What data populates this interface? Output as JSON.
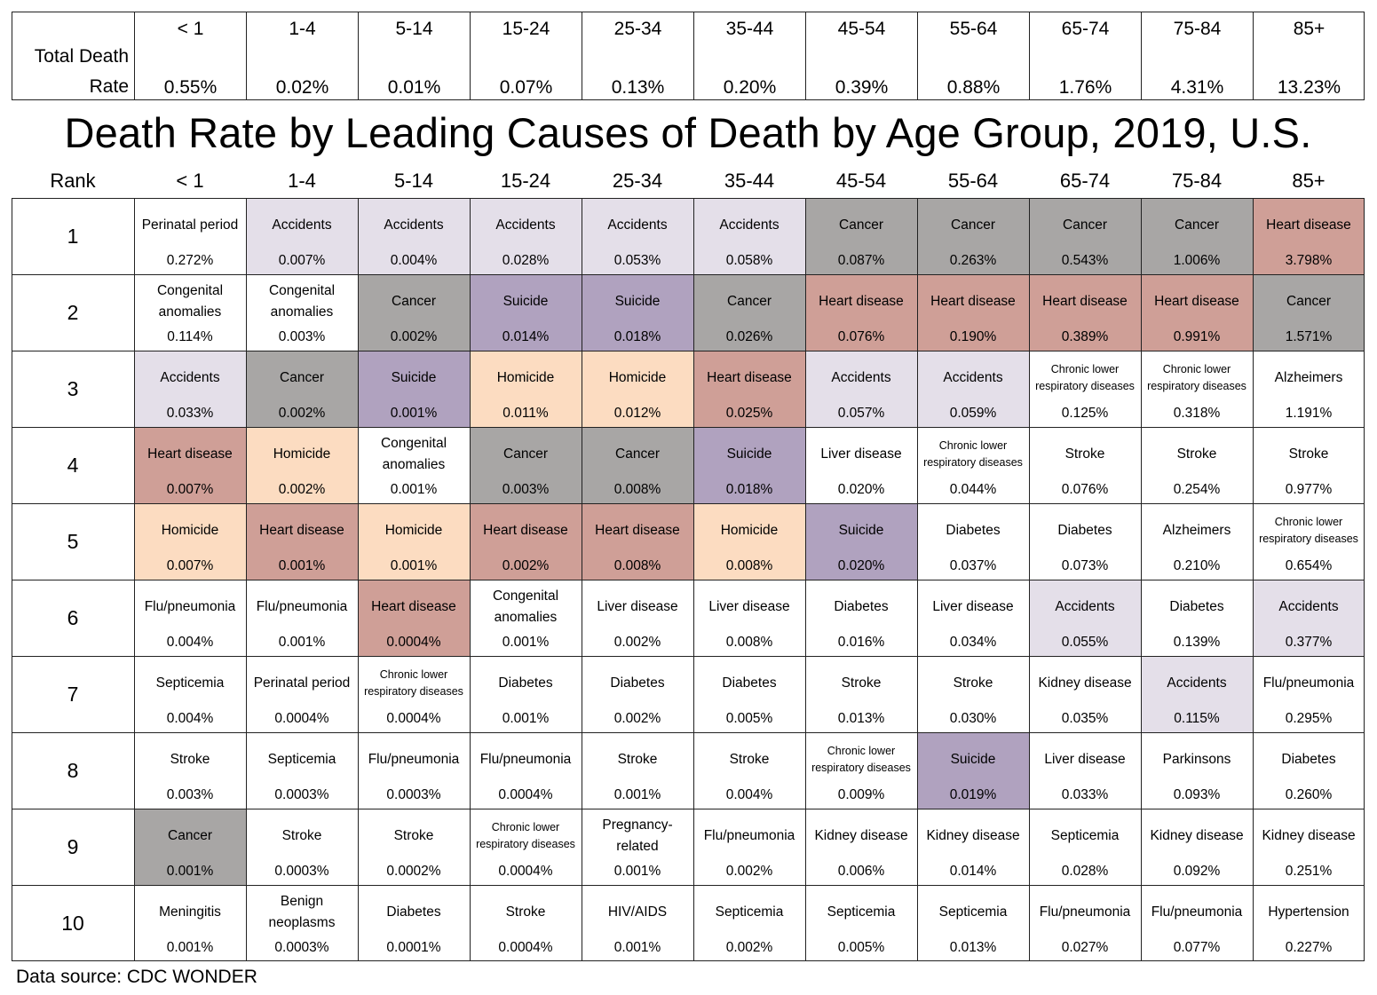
{
  "title": "Death Rate by Leading Causes of Death by Age Group, 2019, U.S.",
  "source": "Data source: CDC WONDER",
  "total_death_rate": {
    "label_line1": "Total Death",
    "label_line2": "Rate",
    "age_groups": [
      "< 1",
      "1-4",
      "5-14",
      "15-24",
      "25-34",
      "35-44",
      "45-54",
      "55-64",
      "65-74",
      "75-84",
      "85+"
    ],
    "rates": [
      "0.55%",
      "0.02%",
      "0.01%",
      "0.07%",
      "0.13%",
      "0.20%",
      "0.39%",
      "0.88%",
      "1.76%",
      "4.31%",
      "13.23%"
    ]
  },
  "colors": {
    "Accidents": "#e4dfe9",
    "Cancer": "#a8a6a5",
    "Heart disease": "#cf9f97",
    "Suicide": "#b0a2bf",
    "Homicide": "#fcdcc1",
    "default": "#ffffff",
    "border": "#222222"
  },
  "chart_data": {
    "type": "table",
    "title": "Death Rate by Leading Causes of Death by Age Group, 2019, U.S.",
    "rank_label": "Rank",
    "columns": [
      "< 1",
      "1-4",
      "5-14",
      "15-24",
      "25-34",
      "35-44",
      "45-54",
      "55-64",
      "65-74",
      "75-84",
      "85+"
    ],
    "rows": [
      {
        "rank": "1",
        "cells": [
          {
            "cause": "Perinatal period",
            "value": "0.272%"
          },
          {
            "cause": "Accidents",
            "value": "0.007%"
          },
          {
            "cause": "Accidents",
            "value": "0.004%"
          },
          {
            "cause": "Accidents",
            "value": "0.028%"
          },
          {
            "cause": "Accidents",
            "value": "0.053%"
          },
          {
            "cause": "Accidents",
            "value": "0.058%"
          },
          {
            "cause": "Cancer",
            "value": "0.087%"
          },
          {
            "cause": "Cancer",
            "value": "0.263%"
          },
          {
            "cause": "Cancer",
            "value": "0.543%"
          },
          {
            "cause": "Cancer",
            "value": "1.006%"
          },
          {
            "cause": "Heart disease",
            "value": "3.798%"
          }
        ]
      },
      {
        "rank": "2",
        "cells": [
          {
            "cause": "Congenital\nanomalies",
            "value": "0.114%"
          },
          {
            "cause": "Congenital\nanomalies",
            "value": "0.003%"
          },
          {
            "cause": "Cancer",
            "value": "0.002%"
          },
          {
            "cause": "Suicide",
            "value": "0.014%"
          },
          {
            "cause": "Suicide",
            "value": "0.018%"
          },
          {
            "cause": "Cancer",
            "value": "0.026%"
          },
          {
            "cause": "Heart disease",
            "value": "0.076%"
          },
          {
            "cause": "Heart disease",
            "value": "0.190%"
          },
          {
            "cause": "Heart disease",
            "value": "0.389%"
          },
          {
            "cause": "Heart disease",
            "value": "0.991%"
          },
          {
            "cause": "Cancer",
            "value": "1.571%"
          }
        ]
      },
      {
        "rank": "3",
        "cells": [
          {
            "cause": "Accidents",
            "value": "0.033%"
          },
          {
            "cause": "Cancer",
            "value": "0.002%"
          },
          {
            "cause": "Suicide",
            "value": "0.001%"
          },
          {
            "cause": "Homicide",
            "value": "0.011%"
          },
          {
            "cause": "Homicide",
            "value": "0.012%"
          },
          {
            "cause": "Heart disease",
            "value": "0.025%"
          },
          {
            "cause": "Accidents",
            "value": "0.057%"
          },
          {
            "cause": "Accidents",
            "value": "0.059%"
          },
          {
            "cause": "Chronic lower\nrespiratory diseases",
            "value": "0.125%"
          },
          {
            "cause": "Chronic lower\nrespiratory diseases",
            "value": "0.318%"
          },
          {
            "cause": "Alzheimers",
            "value": "1.191%"
          }
        ]
      },
      {
        "rank": "4",
        "cells": [
          {
            "cause": "Heart disease",
            "value": "0.007%"
          },
          {
            "cause": "Homicide",
            "value": "0.002%"
          },
          {
            "cause": "Congenital\nanomalies",
            "value": "0.001%"
          },
          {
            "cause": "Cancer",
            "value": "0.003%"
          },
          {
            "cause": "Cancer",
            "value": "0.008%"
          },
          {
            "cause": "Suicide",
            "value": "0.018%"
          },
          {
            "cause": "Liver disease",
            "value": "0.020%"
          },
          {
            "cause": "Chronic lower\nrespiratory diseases",
            "value": "0.044%"
          },
          {
            "cause": "Stroke",
            "value": "0.076%"
          },
          {
            "cause": "Stroke",
            "value": "0.254%"
          },
          {
            "cause": "Stroke",
            "value": "0.977%"
          }
        ]
      },
      {
        "rank": "5",
        "cells": [
          {
            "cause": "Homicide",
            "value": "0.007%"
          },
          {
            "cause": "Heart disease",
            "value": "0.001%"
          },
          {
            "cause": "Homicide",
            "value": "0.001%"
          },
          {
            "cause": "Heart disease",
            "value": "0.002%"
          },
          {
            "cause": "Heart disease",
            "value": "0.008%"
          },
          {
            "cause": "Homicide",
            "value": "0.008%"
          },
          {
            "cause": "Suicide",
            "value": "0.020%"
          },
          {
            "cause": "Diabetes",
            "value": "0.037%"
          },
          {
            "cause": "Diabetes",
            "value": "0.073%"
          },
          {
            "cause": "Alzheimers",
            "value": "0.210%"
          },
          {
            "cause": "Chronic lower\nrespiratory diseases",
            "value": "0.654%"
          }
        ]
      },
      {
        "rank": "6",
        "cells": [
          {
            "cause": "Flu/pneumonia",
            "value": "0.004%"
          },
          {
            "cause": "Flu/pneumonia",
            "value": "0.001%"
          },
          {
            "cause": "Heart disease",
            "value": "0.0004%"
          },
          {
            "cause": "Congenital\nanomalies",
            "value": "0.001%"
          },
          {
            "cause": "Liver disease",
            "value": "0.002%"
          },
          {
            "cause": "Liver disease",
            "value": "0.008%"
          },
          {
            "cause": "Diabetes",
            "value": "0.016%"
          },
          {
            "cause": "Liver disease",
            "value": "0.034%"
          },
          {
            "cause": "Accidents",
            "value": "0.055%"
          },
          {
            "cause": "Diabetes",
            "value": "0.139%"
          },
          {
            "cause": "Accidents",
            "value": "0.377%"
          }
        ]
      },
      {
        "rank": "7",
        "cells": [
          {
            "cause": "Septicemia",
            "value": "0.004%"
          },
          {
            "cause": "Perinatal period",
            "value": "0.0004%"
          },
          {
            "cause": "Chronic lower\nrespiratory diseases",
            "value": "0.0004%"
          },
          {
            "cause": "Diabetes",
            "value": "0.001%"
          },
          {
            "cause": "Diabetes",
            "value": "0.002%"
          },
          {
            "cause": "Diabetes",
            "value": "0.005%"
          },
          {
            "cause": "Stroke",
            "value": "0.013%"
          },
          {
            "cause": "Stroke",
            "value": "0.030%"
          },
          {
            "cause": "Kidney disease",
            "value": "0.035%"
          },
          {
            "cause": "Accidents",
            "value": "0.115%"
          },
          {
            "cause": "Flu/pneumonia",
            "value": "0.295%"
          }
        ]
      },
      {
        "rank": "8",
        "cells": [
          {
            "cause": "Stroke",
            "value": "0.003%"
          },
          {
            "cause": "Septicemia",
            "value": "0.0003%"
          },
          {
            "cause": "Flu/pneumonia",
            "value": "0.0003%"
          },
          {
            "cause": "Flu/pneumonia",
            "value": "0.0004%"
          },
          {
            "cause": "Stroke",
            "value": "0.001%"
          },
          {
            "cause": "Stroke",
            "value": "0.004%"
          },
          {
            "cause": "Chronic lower\nrespiratory diseases",
            "value": "0.009%"
          },
          {
            "cause": "Suicide",
            "value": "0.019%"
          },
          {
            "cause": "Liver disease",
            "value": "0.033%"
          },
          {
            "cause": "Parkinsons",
            "value": "0.093%"
          },
          {
            "cause": "Diabetes",
            "value": "0.260%"
          }
        ]
      },
      {
        "rank": "9",
        "cells": [
          {
            "cause": "Cancer",
            "value": "0.001%"
          },
          {
            "cause": "Stroke",
            "value": "0.0003%"
          },
          {
            "cause": "Stroke",
            "value": "0.0002%"
          },
          {
            "cause": "Chronic lower\nrespiratory diseases",
            "value": "0.0004%"
          },
          {
            "cause": "Pregnancy-\nrelated",
            "value": "0.001%"
          },
          {
            "cause": "Flu/pneumonia",
            "value": "0.002%"
          },
          {
            "cause": "Kidney disease",
            "value": "0.006%"
          },
          {
            "cause": "Kidney disease",
            "value": "0.014%"
          },
          {
            "cause": "Septicemia",
            "value": "0.028%"
          },
          {
            "cause": "Kidney disease",
            "value": "0.092%"
          },
          {
            "cause": "Kidney disease",
            "value": "0.251%"
          }
        ]
      },
      {
        "rank": "10",
        "cells": [
          {
            "cause": "Meningitis",
            "value": "0.001%"
          },
          {
            "cause": "Benign\nneoplasms",
            "value": "0.0003%"
          },
          {
            "cause": "Diabetes",
            "value": "0.0001%"
          },
          {
            "cause": "Stroke",
            "value": "0.0004%"
          },
          {
            "cause": "HIV/AIDS",
            "value": "0.001%"
          },
          {
            "cause": "Septicemia",
            "value": "0.002%"
          },
          {
            "cause": "Septicemia",
            "value": "0.005%"
          },
          {
            "cause": "Septicemia",
            "value": "0.013%"
          },
          {
            "cause": "Flu/pneumonia",
            "value": "0.027%"
          },
          {
            "cause": "Flu/pneumonia",
            "value": "0.077%"
          },
          {
            "cause": "Hypertension",
            "value": "0.227%"
          }
        ]
      }
    ]
  }
}
